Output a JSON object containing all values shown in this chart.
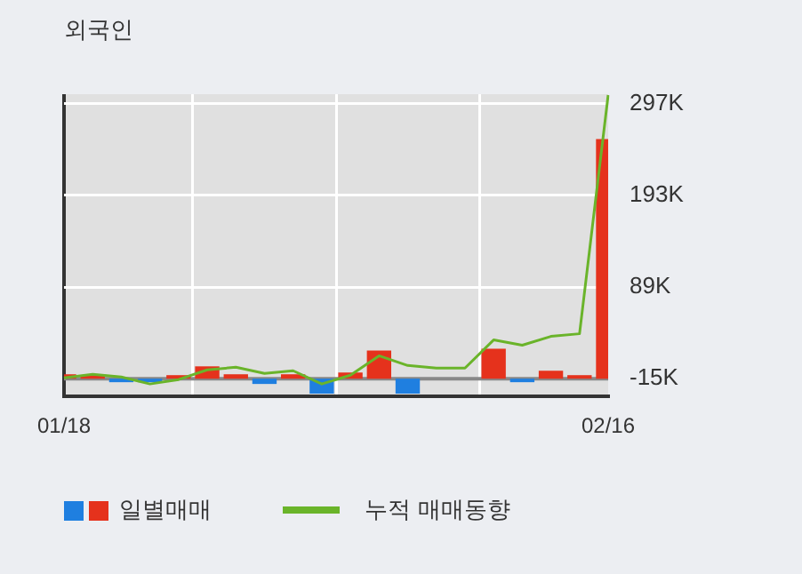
{
  "chart_data": {
    "type": "bar",
    "title": "외국인",
    "categories": [
      "01/18",
      null,
      null,
      null,
      null,
      null,
      null,
      null,
      null,
      null,
      null,
      null,
      null,
      null,
      null,
      null,
      null,
      null,
      null,
      "02/16"
    ],
    "series": [
      {
        "name": "일별매매",
        "base": [
          -15,
          -15,
          -15,
          -15,
          -15,
          -15,
          -15,
          -15,
          -15,
          -15,
          -15,
          -15,
          -15,
          null,
          null,
          -15,
          -15,
          -15,
          -15,
          -15
        ],
        "values": [
          5,
          4,
          -4,
          -4,
          4,
          14,
          5,
          -6,
          5,
          -17,
          7,
          32,
          -17,
          null,
          null,
          34,
          -4,
          9,
          4,
          272
        ],
        "colors": [
          "#e5321c",
          "#e5321c",
          "#1f7fe0",
          "#1f7fe0",
          "#e5321c",
          "#e5321c",
          "#e5321c",
          "#1f7fe0",
          "#e5321c",
          "#1f7fe0",
          "#e5321c",
          "#e5321c",
          "#1f7fe0",
          "#e5321c",
          "#e5321c",
          "#e5321c",
          "#1f7fe0",
          "#e5321c",
          "#e5321c",
          "#e5321c"
        ]
      },
      {
        "type": "line",
        "name": "누적 매매동향",
        "color": "#6ab42a",
        "values": [
          -14,
          -10,
          -13,
          -21,
          -16,
          -5,
          -2,
          -9,
          -6,
          -21,
          -11,
          11,
          0,
          -3,
          -3,
          29,
          23,
          33,
          36,
          307
        ]
      }
    ],
    "ylim": [
      -35,
      308
    ],
    "yticks": [
      {
        "value": -15,
        "label": "-15K"
      },
      {
        "value": 89,
        "label": "89K"
      },
      {
        "value": 193,
        "label": "193K"
      },
      {
        "value": 297,
        "label": "297K"
      }
    ],
    "ref_lines": [
      {
        "axis": "y",
        "value": -15,
        "color": "#888888"
      }
    ],
    "grid": true,
    "legend": "bottom",
    "marker": "none"
  }
}
